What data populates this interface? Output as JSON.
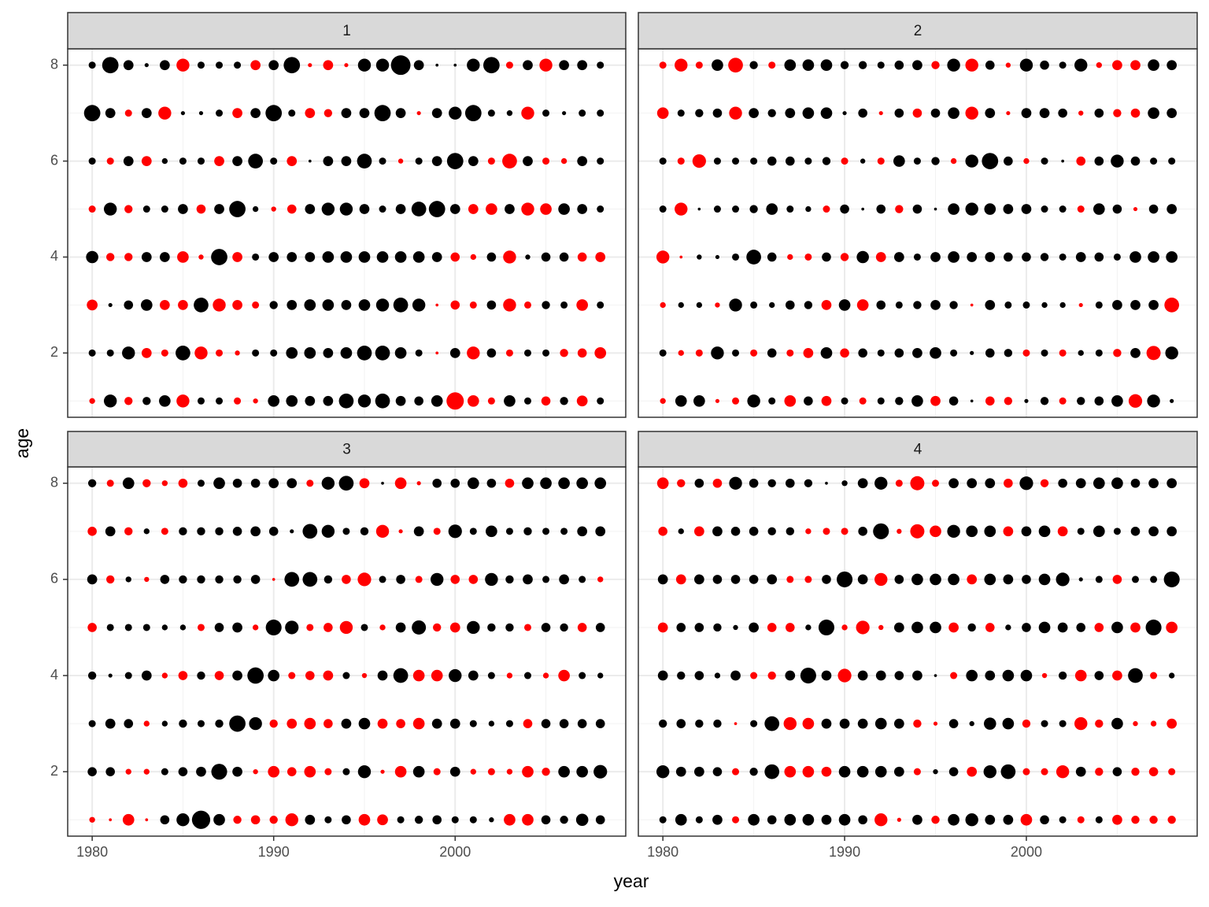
{
  "xlabel": "year",
  "ylabel": "age",
  "color": "#000000",
  "negative_color": "#ff0000",
  "chart_data": [
    {
      "type": "bubble",
      "title": "1",
      "x": [
        1980,
        1981,
        1982,
        1983,
        1984,
        1985,
        1986,
        1987,
        1988,
        1989,
        1990,
        1991,
        1992,
        1993,
        1994,
        1995,
        1996,
        1997,
        1998,
        1999,
        2000,
        2001,
        2002,
        2003,
        2004,
        2005,
        2006,
        2007,
        2008
      ],
      "y": [
        8,
        7,
        6,
        5,
        4,
        3,
        2,
        1
      ],
      "values": [
        [
          0.3,
          1.6,
          0.6,
          0.1,
          0.6,
          -1,
          0.3,
          0.3,
          0.3,
          -0.6,
          0.6,
          1.6,
          -0.1,
          -0.6,
          -0.1,
          1,
          1,
          2.3,
          0.6,
          0.05,
          0.05,
          1,
          1.6,
          -0.3,
          0.6,
          -1,
          0.6,
          0.6,
          0.3
        ],
        [
          1.6,
          0.6,
          -0.3,
          0.6,
          -1,
          0.1,
          0.1,
          0.3,
          -0.6,
          0.6,
          1.6,
          0.3,
          -0.6,
          -0.4,
          0.6,
          0.6,
          1.6,
          0.6,
          -0.1,
          0.6,
          1,
          1.6,
          0.3,
          0.2,
          -1,
          0.3,
          0.1,
          0.3,
          0.3
        ],
        [
          0.3,
          -0.3,
          0.6,
          -0.6,
          0.2,
          0.3,
          0.3,
          -0.6,
          0.6,
          1.3,
          0.3,
          -0.6,
          0.05,
          0.6,
          0.6,
          1.3,
          0.3,
          -0.15,
          0.3,
          0.6,
          1.6,
          0.6,
          -0.3,
          -1.3,
          0.6,
          -0.3,
          -0.2,
          0.6,
          0.3
        ],
        [
          -0.3,
          1,
          -0.4,
          0.3,
          0.3,
          0.6,
          -0.5,
          0.6,
          1.6,
          0.2,
          -0.15,
          -0.5,
          0.6,
          1,
          1,
          0.6,
          0.3,
          0.6,
          1.3,
          1.6,
          0.6,
          -0.6,
          -0.8,
          0.6,
          -1,
          -0.8,
          0.8,
          0.6,
          0.3
        ],
        [
          0.9,
          -0.4,
          -0.4,
          0.6,
          0.6,
          -0.8,
          -0.15,
          1.6,
          -0.6,
          0.3,
          0.6,
          0.6,
          0.6,
          0.8,
          0.8,
          0.8,
          0.8,
          0.8,
          0.8,
          0.6,
          -0.5,
          -0.2,
          0.5,
          -1,
          0.15,
          0.5,
          0.5,
          -0.5,
          -0.6
        ],
        [
          -0.7,
          0.1,
          0.5,
          0.8,
          -0.6,
          -0.6,
          1.3,
          -1,
          -0.6,
          -0.3,
          0.4,
          0.6,
          0.8,
          0.8,
          0.6,
          0.8,
          1,
          1.3,
          1,
          -0.05,
          -0.5,
          -0.3,
          0.5,
          -1,
          -0.3,
          0.4,
          0.3,
          -0.8,
          0.3
        ],
        [
          0.3,
          0.3,
          1,
          -0.6,
          -0.3,
          1.3,
          -1,
          -0.3,
          -0.15,
          0.3,
          0.3,
          0.8,
          0.8,
          0.6,
          0.8,
          1.3,
          1.3,
          0.8,
          0.3,
          -0.05,
          0.6,
          -1,
          0.5,
          -0.3,
          0.3,
          0.3,
          -0.4,
          -0.5,
          -0.8
        ],
        [
          -0.2,
          1,
          -0.4,
          0.4,
          0.8,
          -1,
          0.3,
          0.3,
          -0.3,
          -0.15,
          0.8,
          0.8,
          0.6,
          0.6,
          1.3,
          1,
          1.3,
          0.6,
          0.5,
          0.8,
          -1.8,
          -0.8,
          -0.3,
          0.8,
          0.3,
          -0.5,
          0.4,
          -0.7,
          0.3
        ]
      ],
      "xlim": [
        1978.65,
        2009.4
      ],
      "ylim": [
        0.66,
        8.34
      ],
      "xticks": [
        1980,
        1990,
        2000
      ],
      "yticks": [
        2,
        4,
        6,
        8
      ],
      "xminor": [
        1985,
        1995,
        2005
      ],
      "yminor": [
        1,
        3,
        5,
        7
      ],
      "grid": true
    },
    {
      "type": "bubble",
      "title": "2",
      "x": [
        1980,
        1981,
        1982,
        1983,
        1984,
        1985,
        1986,
        1987,
        1988,
        1989,
        1990,
        1991,
        1992,
        1993,
        1994,
        1995,
        1996,
        1997,
        1998,
        1999,
        2000,
        2001,
        2002,
        2003,
        2004,
        2005,
        2006,
        2007,
        2008
      ],
      "y": [
        8,
        7,
        6,
        5,
        4,
        3,
        2,
        1
      ],
      "values": [
        [
          -0.3,
          -1,
          -0.3,
          0.8,
          -1.3,
          0.4,
          -0.3,
          0.8,
          0.8,
          0.8,
          0.4,
          0.4,
          0.3,
          0.5,
          0.6,
          -0.4,
          1,
          -1,
          0.5,
          -0.15,
          1,
          0.5,
          0.3,
          1,
          -0.2,
          -0.6,
          -0.6,
          0.8,
          0.6
        ],
        [
          -0.8,
          0.3,
          0.4,
          0.5,
          -1,
          0.6,
          0.4,
          0.6,
          0.8,
          0.8,
          0.1,
          0.5,
          -0.1,
          0.5,
          -0.5,
          0.5,
          0.8,
          -1,
          0.6,
          -0.1,
          0.6,
          0.6,
          0.5,
          -0.15,
          0.5,
          -0.4,
          -0.5,
          0.8,
          0.6
        ],
        [
          0.3,
          -0.3,
          -1.1,
          0.3,
          0.3,
          0.3,
          0.5,
          0.5,
          0.3,
          0.4,
          -0.3,
          0.15,
          -0.3,
          0.8,
          0.3,
          0.4,
          -0.2,
          1,
          1.6,
          0.5,
          -0.2,
          0.3,
          0.05,
          -0.5,
          0.5,
          1,
          0.5,
          0.3,
          0.3
        ],
        [
          0.3,
          -1,
          0.05,
          0.3,
          0.3,
          0.4,
          0.8,
          0.3,
          0.2,
          -0.3,
          0.5,
          0.05,
          0.5,
          -0.4,
          0.5,
          0.05,
          0.8,
          1,
          0.8,
          0.6,
          0.6,
          0.3,
          0.3,
          -0.3,
          0.8,
          0.5,
          -0.1,
          0.5,
          0.6
        ],
        [
          -1,
          -0.05,
          0.15,
          0.1,
          0.3,
          1.3,
          0.5,
          -0.2,
          -0.3,
          0.5,
          -0.4,
          0.9,
          -0.6,
          0.6,
          0.3,
          0.6,
          0.8,
          0.6,
          0.6,
          0.5,
          0.5,
          0.4,
          0.3,
          0.6,
          0.5,
          0.3,
          0.8,
          0.8,
          0.8
        ],
        [
          -0.2,
          0.2,
          0.2,
          -0.15,
          1,
          0.3,
          0.2,
          0.5,
          0.4,
          -0.6,
          0.8,
          -0.8,
          0.5,
          0.3,
          0.4,
          0.6,
          0.4,
          -0.05,
          0.6,
          0.3,
          0.3,
          0.2,
          0.2,
          -0.1,
          0.3,
          0.6,
          0.6,
          0.6,
          -1.3
        ],
        [
          0.3,
          -0.2,
          -0.3,
          1,
          0.3,
          -0.3,
          0.5,
          -0.3,
          -0.6,
          0.8,
          -0.5,
          0.5,
          0.3,
          0.5,
          0.6,
          0.8,
          0.3,
          0.1,
          0.5,
          0.4,
          -0.3,
          0.3,
          -0.3,
          0.2,
          0.3,
          -0.4,
          0.6,
          -1.2,
          1
        ],
        [
          -0.2,
          0.8,
          0.8,
          -0.1,
          -0.3,
          1,
          0.3,
          -0.8,
          0.5,
          -0.6,
          0.3,
          -0.3,
          0.3,
          0.4,
          0.8,
          -0.6,
          0.5,
          0.05,
          -0.5,
          -0.4,
          0.1,
          0.4,
          -0.3,
          0.4,
          0.5,
          0.8,
          -1.1,
          1,
          0.1
        ]
      ],
      "xlim": [
        1978.65,
        2009.4
      ],
      "ylim": [
        0.66,
        8.34
      ],
      "xticks": [
        1980,
        1990,
        2000
      ],
      "yticks": [
        2,
        4,
        6,
        8
      ],
      "xminor": [
        1985,
        1995,
        2005
      ],
      "yminor": [
        1,
        3,
        5,
        7
      ],
      "grid": true
    },
    {
      "type": "bubble",
      "title": "3",
      "x": [
        1980,
        1981,
        1982,
        1983,
        1984,
        1985,
        1986,
        1987,
        1988,
        1989,
        1990,
        1991,
        1992,
        1993,
        1994,
        1995,
        1996,
        1997,
        1998,
        1999,
        2000,
        2001,
        2002,
        2003,
        2004,
        2005,
        2006,
        2007,
        2008
      ],
      "y": [
        8,
        7,
        6,
        5,
        4,
        3,
        2,
        1
      ],
      "values": [
        [
          0.4,
          -0.3,
          0.8,
          -0.4,
          -0.2,
          -0.5,
          0.3,
          0.8,
          0.5,
          0.5,
          0.6,
          0.6,
          -0.3,
          1,
          1.3,
          -0.6,
          0.05,
          -0.8,
          -0.1,
          0.5,
          0.5,
          0.8,
          0.5,
          -0.5,
          0.8,
          0.8,
          0.8,
          0.8,
          0.8
        ],
        [
          -0.5,
          0.6,
          -0.4,
          0.2,
          -0.3,
          0.4,
          0.4,
          0.4,
          0.5,
          0.6,
          0.5,
          0.1,
          1.3,
          1,
          0.3,
          0.4,
          -1,
          -0.1,
          0.6,
          -0.3,
          1.1,
          0.3,
          0.8,
          0.3,
          0.4,
          0.3,
          0.3,
          0.6,
          0.6
        ],
        [
          0.6,
          -0.4,
          0.2,
          -0.15,
          0.5,
          0.4,
          0.4,
          0.4,
          0.4,
          0.5,
          -0.05,
          1.3,
          1.3,
          0.4,
          -0.5,
          -1.1,
          0.3,
          0.5,
          -0.3,
          1,
          -0.5,
          -0.5,
          1,
          0.4,
          0.6,
          0.3,
          0.6,
          0.3,
          -0.2
        ],
        [
          -0.5,
          0.3,
          0.3,
          0.3,
          0.2,
          0.2,
          -0.3,
          0.5,
          0.6,
          -0.2,
          1.5,
          1.1,
          -0.3,
          -0.5,
          -1,
          0.3,
          -0.2,
          0.6,
          1.2,
          -0.4,
          -0.6,
          1,
          0.4,
          0.4,
          -0.3,
          0.5,
          0.4,
          -0.5,
          0.5
        ],
        [
          0.4,
          0.1,
          0.3,
          0.6,
          -0.2,
          -0.5,
          0.4,
          -0.5,
          0.6,
          1.6,
          0.8,
          -0.3,
          -0.5,
          -0.6,
          0.3,
          -0.15,
          0.6,
          1.3,
          -0.8,
          -0.8,
          1,
          0.6,
          0.3,
          -0.2,
          0.3,
          -0.2,
          -0.8,
          0.3,
          0.2
        ],
        [
          0.3,
          0.6,
          0.5,
          -0.2,
          0.2,
          0.4,
          0.3,
          0.4,
          1.6,
          1,
          -0.4,
          -0.6,
          -0.8,
          -0.5,
          0.6,
          0.8,
          -0.6,
          -0.5,
          -0.8,
          0.6,
          0.6,
          0.3,
          0.2,
          0.3,
          -0.5,
          0.5,
          0.5,
          0.5,
          0.5
        ],
        [
          0.5,
          0.5,
          -0.2,
          -0.2,
          0.3,
          0.5,
          0.6,
          1.5,
          0.6,
          -0.15,
          -0.8,
          -0.5,
          -0.8,
          -0.3,
          0.3,
          1,
          -0.1,
          -0.8,
          0.8,
          -0.3,
          0.6,
          -0.2,
          -0.3,
          -0.2,
          -0.8,
          -0.4,
          0.8,
          0.8,
          1.1
        ],
        [
          -0.2,
          -0.05,
          -0.8,
          -0.05,
          0.5,
          1,
          2,
          0.8,
          -0.4,
          -0.5,
          -0.4,
          -1,
          0.6,
          0.3,
          0.5,
          -0.8,
          -0.7,
          0.3,
          0.4,
          0.5,
          0.3,
          0.3,
          0.15,
          -0.8,
          -0.8,
          0.5,
          0.4,
          0.9,
          0.5
        ]
      ],
      "xlim": [
        1978.65,
        2009.4
      ],
      "ylim": [
        0.66,
        8.34
      ],
      "xticks": [
        1980,
        1990,
        2000
      ],
      "yticks": [
        2,
        4,
        6,
        8
      ],
      "xminor": [
        1985,
        1995,
        2005
      ],
      "yminor": [
        1,
        3,
        5,
        7
      ],
      "grid": true
    },
    {
      "type": "bubble",
      "title": "4",
      "x": [
        1980,
        1981,
        1982,
        1983,
        1984,
        1985,
        1986,
        1987,
        1988,
        1989,
        1990,
        1991,
        1992,
        1993,
        1994,
        1995,
        1996,
        1997,
        1998,
        1999,
        2000,
        2001,
        2002,
        2003,
        2004,
        2005,
        2006,
        2007,
        2008
      ],
      "y": [
        8,
        7,
        6,
        5,
        4,
        3,
        2,
        1
      ],
      "values": [
        [
          -0.8,
          -0.4,
          0.5,
          -0.5,
          1,
          0.5,
          0.4,
          0.5,
          0.4,
          0.05,
          0.2,
          0.6,
          1,
          -0.3,
          -1.2,
          -0.3,
          0.6,
          0.6,
          0.6,
          -0.5,
          1.1,
          -0.4,
          0.5,
          0.6,
          0.8,
          0.8,
          0.5,
          0.6,
          0.6
        ],
        [
          -0.5,
          0.2,
          -0.6,
          0.6,
          0.5,
          0.5,
          0.4,
          0.4,
          -0.2,
          -0.3,
          -0.3,
          0.5,
          1.5,
          -0.15,
          -1.2,
          -0.8,
          1,
          0.8,
          0.8,
          -0.6,
          0.6,
          0.8,
          -0.6,
          0.3,
          0.8,
          0.3,
          0.5,
          0.6,
          0.6
        ],
        [
          0.6,
          -0.6,
          0.6,
          0.5,
          0.5,
          0.5,
          0.6,
          -0.3,
          -0.3,
          0.5,
          1.5,
          0.6,
          -1,
          0.5,
          0.8,
          0.8,
          0.8,
          -0.6,
          0.8,
          0.6,
          0.5,
          0.8,
          1.1,
          0.1,
          0.3,
          -0.5,
          0.3,
          0.3,
          1.5
        ],
        [
          -0.6,
          0.5,
          0.5,
          0.4,
          0.15,
          0.6,
          -0.5,
          -0.5,
          0.2,
          1.5,
          -0.2,
          -1.1,
          -0.15,
          0.6,
          0.8,
          0.8,
          -0.6,
          0.4,
          -0.5,
          0.2,
          0.5,
          0.8,
          0.6,
          0.5,
          -0.5,
          0.8,
          -0.6,
          1.5,
          -0.8
        ],
        [
          0.6,
          0.4,
          0.5,
          0.2,
          0.6,
          -0.3,
          -0.4,
          0.6,
          1.5,
          0.6,
          -1.1,
          0.6,
          0.6,
          0.5,
          0.6,
          0.05,
          -0.3,
          0.8,
          0.6,
          0.8,
          0.8,
          -0.15,
          0.4,
          -0.8,
          0.5,
          -0.6,
          1.3,
          -0.3,
          0.2
        ],
        [
          0.4,
          0.5,
          0.4,
          0.4,
          -0.05,
          0.3,
          1.3,
          -1,
          -0.8,
          0.6,
          0.6,
          0.6,
          0.8,
          0.6,
          -0.4,
          -0.1,
          0.5,
          0.15,
          0.9,
          0.8,
          -0.4,
          0.3,
          0.3,
          -1,
          -0.4,
          0.8,
          -0.15,
          -0.2,
          -0.6
        ],
        [
          1,
          0.6,
          0.6,
          0.5,
          -0.3,
          0.4,
          1.3,
          -0.8,
          -0.8,
          -0.6,
          0.8,
          0.8,
          0.8,
          0.6,
          -0.3,
          0.15,
          0.5,
          -0.6,
          1,
          1.3,
          -0.3,
          -0.3,
          -1,
          0.6,
          -0.4,
          0.5,
          -0.4,
          -0.5,
          -0.3
        ],
        [
          0.3,
          0.8,
          0.3,
          0.6,
          -0.3,
          0.8,
          0.5,
          0.8,
          0.8,
          0.6,
          0.8,
          0.5,
          -1,
          -0.1,
          0.6,
          -0.4,
          0.8,
          1,
          0.6,
          0.6,
          -0.8,
          0.5,
          0.3,
          -0.3,
          0.3,
          -0.6,
          -0.4,
          -0.4,
          -0.4
        ]
      ],
      "xlim": [
        1978.65,
        2009.4
      ],
      "ylim": [
        0.66,
        8.34
      ],
      "xticks": [
        1980,
        1990,
        2000
      ],
      "yticks": [
        2,
        4,
        6,
        8
      ],
      "xminor": [
        1985,
        1995,
        2005
      ],
      "yminor": [
        1,
        3,
        5,
        7
      ],
      "grid": true
    }
  ]
}
